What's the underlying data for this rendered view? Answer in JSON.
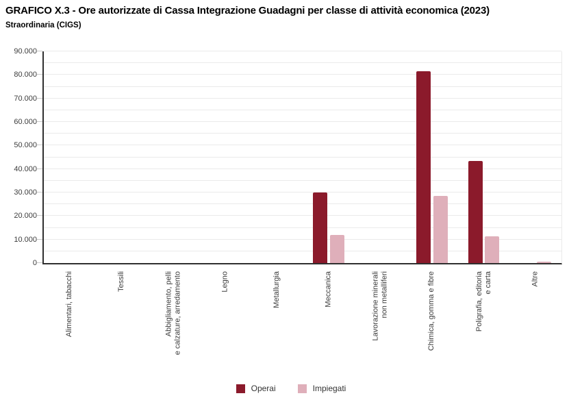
{
  "header": {
    "title": "GRAFICO X.3 - Ore autorizzate di Cassa Integrazione Guadagni per classe di attività economica (2023)",
    "subtitle": "Straordinaria (CIGS)"
  },
  "chart_data": {
    "type": "bar",
    "title": "GRAFICO X.3 - Ore autorizzate di Cassa Integrazione Guadagni per classe di attività economica (2023)",
    "subtitle": "Straordinaria (CIGS)",
    "categories": [
      "Alimentari, tabacchi",
      "Tessili",
      "Abbigliamento, pelli e calzature, arredamento",
      "Legno",
      "Metallurgia",
      "Meccanica",
      "Lavorazione minerali non metalliferi",
      "Chimica, gomma e fibre",
      "Poligrafia, editoria e carta",
      "Altre"
    ],
    "category_label_lines": [
      [
        "Alimentari, tabacchi"
      ],
      [
        "Tessili"
      ],
      [
        "Abbigliamento, pelli",
        "e calzature, arredamento"
      ],
      [
        "Legno"
      ],
      [
        "Metallurgia"
      ],
      [
        "Meccanica"
      ],
      [
        "Lavorazione minerali",
        "non metalliferi"
      ],
      [
        "Chimica, gomma e fibre"
      ],
      [
        "Poligrafia, editoria",
        "e carta"
      ],
      [
        "Altre"
      ]
    ],
    "series": [
      {
        "name": "Operai",
        "color": "#8B1A2B",
        "values": [
          0,
          0,
          0,
          0,
          0,
          30000,
          0,
          81500,
          43500,
          0
        ]
      },
      {
        "name": "Impiegati",
        "color": "#DFAFBA",
        "values": [
          0,
          0,
          0,
          0,
          0,
          12000,
          0,
          28500,
          11500,
          500
        ]
      }
    ],
    "xlabel": "",
    "ylabel": "",
    "ylim": [
      0,
      90000
    ],
    "ytick_interval": 10000,
    "minor_grid_interval": 5000,
    "ytick_labels": [
      "0",
      "10.000",
      "20.000",
      "30.000",
      "40.000",
      "50.000",
      "60.000",
      "70.000",
      "80.000",
      "90.000"
    ],
    "grid": true,
    "legend_position": "bottom"
  },
  "colors": {
    "background": "#FFFFFF",
    "axis": "#2F2F2F",
    "gridline": "#EAEAEA",
    "tick_text": "#3C3C3C",
    "title_text": "#000000",
    "operai": "#8B1A2B",
    "impiegati": "#DFAFBA"
  }
}
